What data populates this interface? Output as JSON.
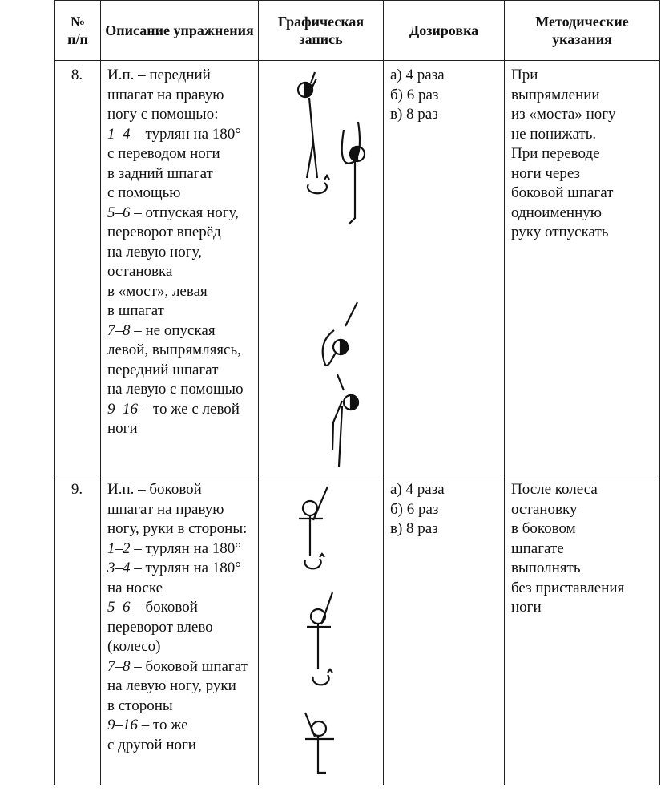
{
  "table": {
    "header": [
      [
        "№",
        "п/п"
      ],
      [
        "Описание упражнения"
      ],
      [
        "Графическая",
        "запись"
      ],
      [
        "Дозировка"
      ],
      [
        "Методические",
        "указания"
      ]
    ],
    "rows": [
      {
        "number": "8.",
        "description": [
          "И.п. – передний",
          "шпагат на правую",
          "ногу с помощью:",
          {
            "em": "1–4",
            "text": " – турлян на 180°"
          },
          "с переводом ноги",
          "в задний шпагат",
          "с помощью",
          {
            "em": "5–6",
            "text": " – отпуская ногу,"
          },
          "переворот вперёд",
          "на левую ногу,",
          "остановка",
          "в «мост», левая",
          "в шпагат",
          {
            "em": "7–8",
            "text": " – не опуская"
          },
          "левой, выпрямляясь,",
          "передний шпагат",
          "на левую с помощью",
          {
            "em": "9–16",
            "text": " – то же с левой"
          },
          "ноги"
        ],
        "dosage": [
          "а) 4 раза",
          "б) 6 раз",
          "в) 8 раз"
        ],
        "notes": [
          "При",
          "выпрямлении",
          "из «моста» ногу",
          "не понижать.",
          "При переводе",
          "ноги через",
          "боковой шпагат",
          "одноименную",
          "руку отпускать"
        ]
      },
      {
        "number": "9.",
        "description": [
          "И.п. – боковой",
          "шпагат на правую",
          "ногу, руки в стороны:",
          {
            "em": "1–2",
            "text": " – турлян на 180°"
          },
          {
            "em": "3–4",
            "text": " – турлян на 180°"
          },
          "на носке",
          {
            "em": "5–6",
            "text": " – боковой"
          },
          "переворот влево",
          "(колесо)",
          {
            "em": "7–8",
            "text": " – боковой шпагат"
          },
          "на левую ногу, руки",
          "в стороны",
          {
            "em": "9–16",
            "text": " – то же"
          },
          "с другой ноги"
        ],
        "dosage": [
          "а) 4 раза",
          "б) 6 раз",
          "в) 8 раз"
        ],
        "notes": [
          "После колеса",
          "остановку",
          "в боковом",
          "шпагате",
          "выполнять",
          "без приставления",
          "ноги"
        ]
      }
    ]
  }
}
